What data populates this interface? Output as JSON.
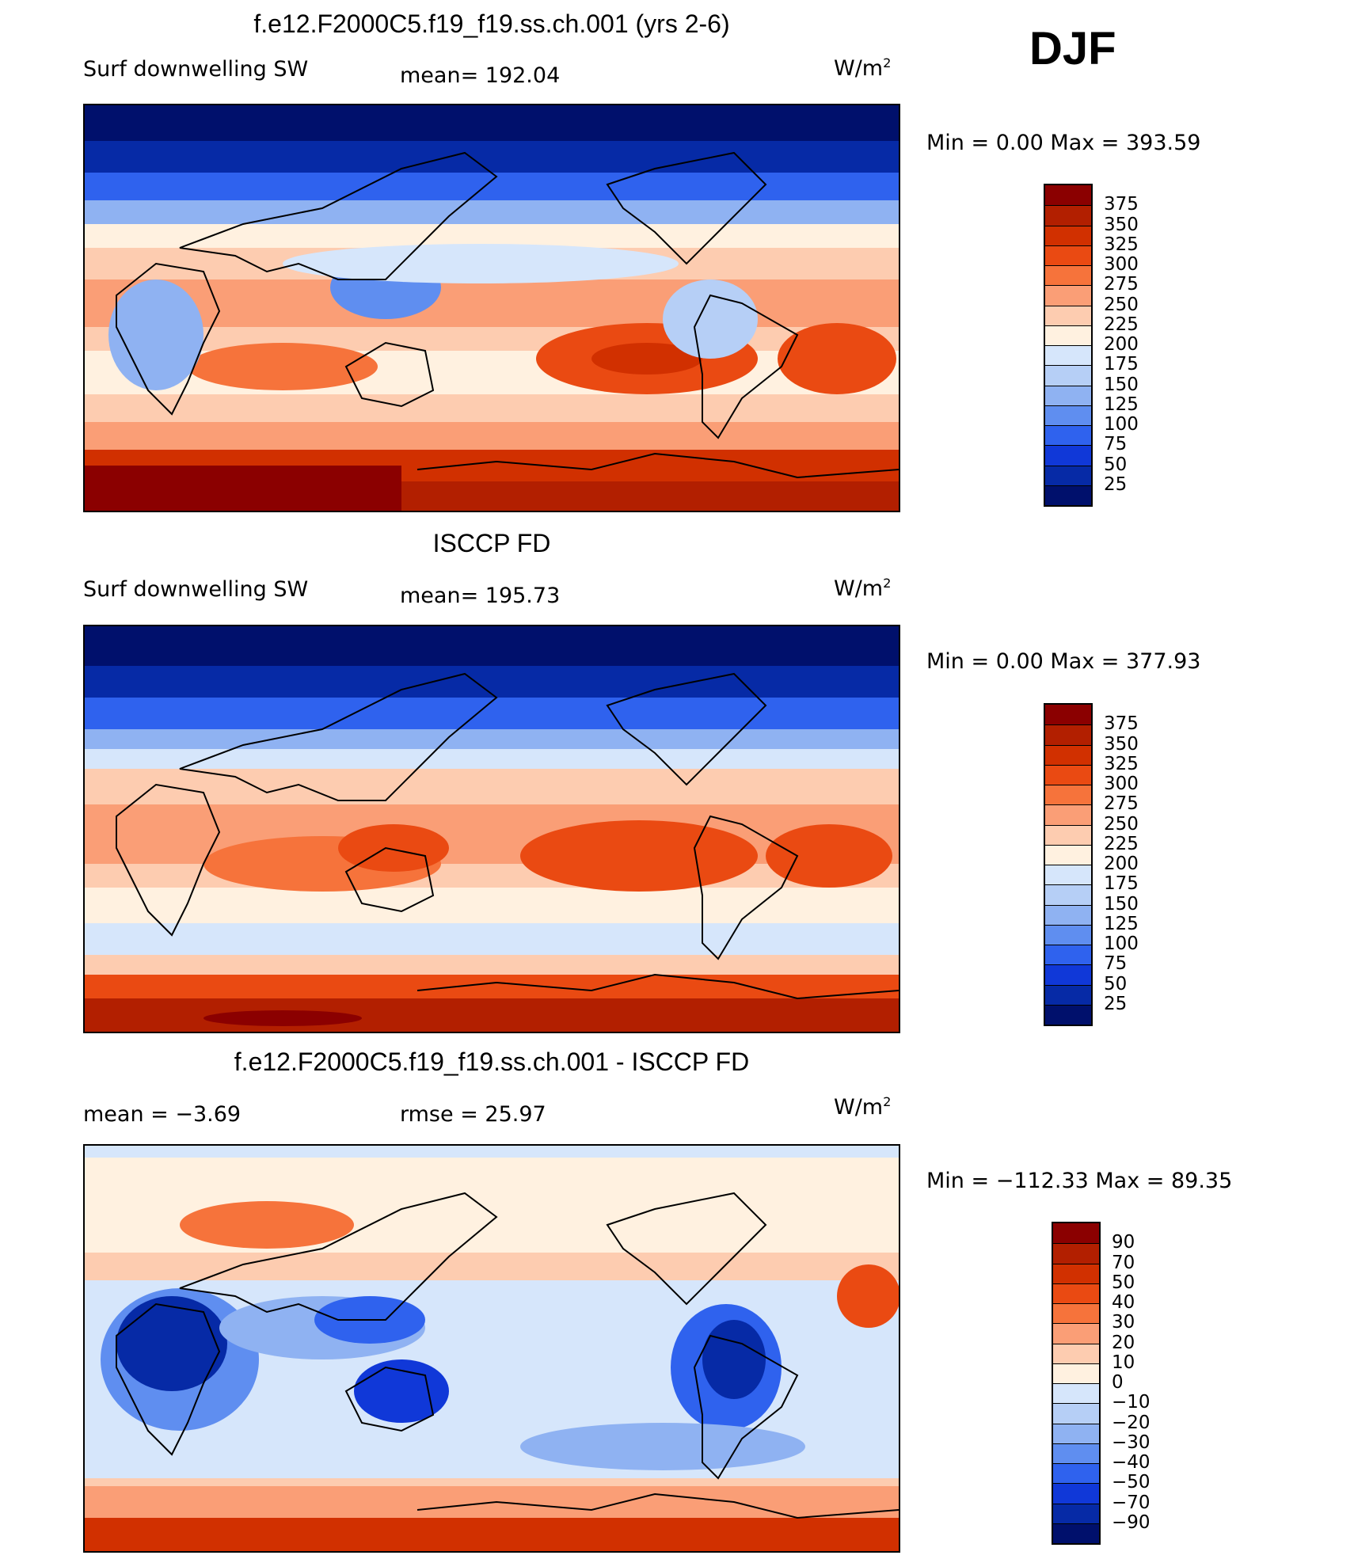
{
  "season": "DJF",
  "panels": [
    {
      "title": "f.e12.F2000C5.f19_f19.ss.ch.001 (yrs 2-6)",
      "left_label": "Surf  downwelling  SW",
      "center_label": "mean=  192.04",
      "units": "W/m",
      "units_sup": "2",
      "minmax": "Min  =      0.00  Max  =  393.59",
      "colorbar_ticks": [
        "375",
        "350",
        "325",
        "300",
        "275",
        "250",
        "225",
        "200",
        "175",
        "150",
        "125",
        "100",
        "75",
        "50",
        "25"
      ],
      "colorbar_colors": [
        "#8b0000",
        "#b21f00",
        "#d13000",
        "#ea4a12",
        "#f6733b",
        "#fa9e76",
        "#fdccb0",
        "#fff1e0",
        "#d6e6fb",
        "#b6cff6",
        "#8fb2f2",
        "#5f8ef0",
        "#2f62ee",
        "#1038d8",
        "#062aa6",
        "#00106c"
      ]
    },
    {
      "title": "ISCCP FD",
      "left_label": "Surf  downwelling  SW",
      "center_label": "mean=  195.73",
      "units": "W/m",
      "units_sup": "2",
      "minmax": "Min  =      0.00  Max  =  377.93",
      "colorbar_ticks": [
        "375",
        "350",
        "325",
        "300",
        "275",
        "250",
        "225",
        "200",
        "175",
        "150",
        "125",
        "100",
        "75",
        "50",
        "25"
      ],
      "colorbar_colors": [
        "#8b0000",
        "#b21f00",
        "#d13000",
        "#ea4a12",
        "#f6733b",
        "#fa9e76",
        "#fdccb0",
        "#fff1e0",
        "#d6e6fb",
        "#b6cff6",
        "#8fb2f2",
        "#5f8ef0",
        "#2f62ee",
        "#1038d8",
        "#062aa6",
        "#00106c"
      ]
    },
    {
      "title": "f.e12.F2000C5.f19_f19.ss.ch.001 - ISCCP FD",
      "left_label": "mean  =     −3.69",
      "center_label": "rmse  =    25.97",
      "units": "W/m",
      "units_sup": "2",
      "minmax": "Min  =  −112.33  Max  =    89.35",
      "colorbar_ticks": [
        "90",
        "70",
        "50",
        "40",
        "30",
        "20",
        "10",
        "0",
        "−10",
        "−20",
        "−30",
        "−40",
        "−50",
        "−70",
        "−90"
      ],
      "colorbar_colors": [
        "#8b0000",
        "#b21f00",
        "#d13000",
        "#ea4a12",
        "#f6733b",
        "#fa9e76",
        "#fdccb0",
        "#fff1e0",
        "#d6e6fb",
        "#b6cff6",
        "#8fb2f2",
        "#5f8ef0",
        "#2f62ee",
        "#1038d8",
        "#062aa6",
        "#00106c"
      ]
    }
  ]
}
